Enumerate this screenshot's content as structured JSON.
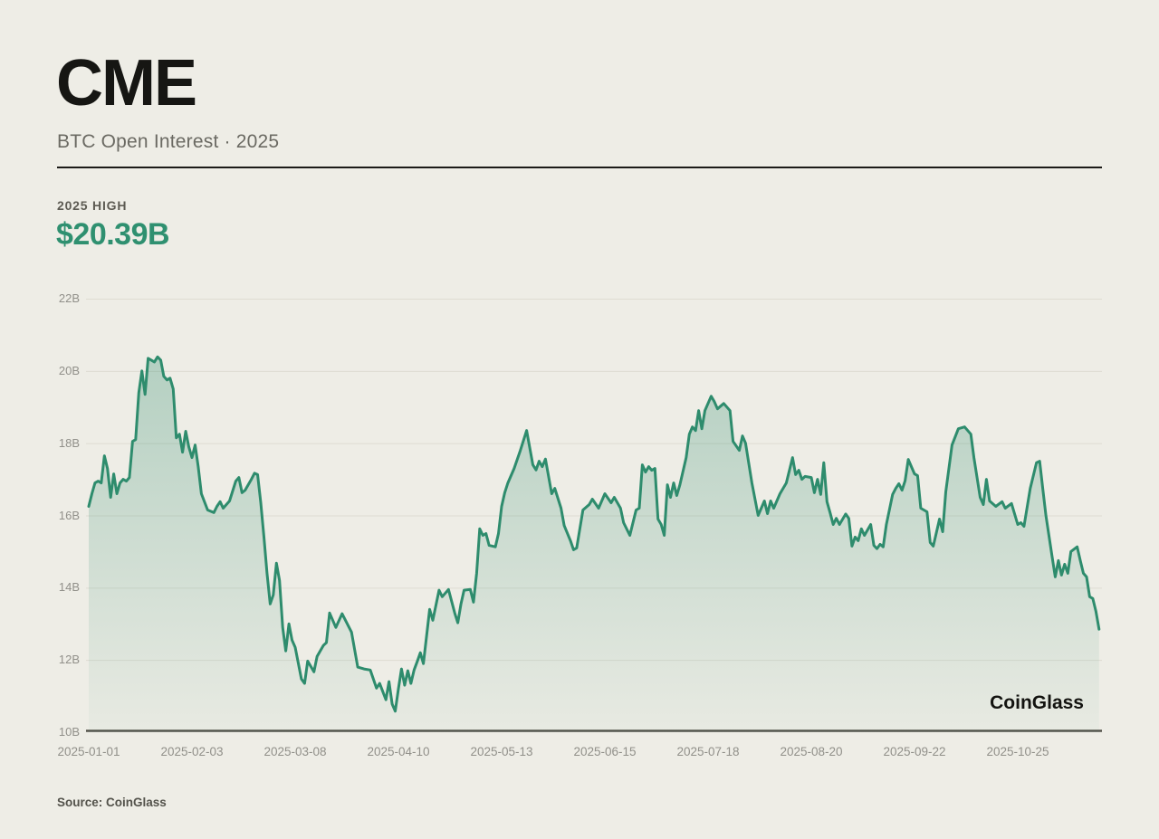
{
  "header": {
    "title": "CME",
    "subtitle": "BTC Open Interest · 2025"
  },
  "stat": {
    "label": "2025 HIGH",
    "value": "$20.39B"
  },
  "watermark": "CoinGlass",
  "source": "Source: CoinGlass",
  "colors": {
    "background": "#EEEDE6",
    "line": "#2E8C6D",
    "fill_top": "rgba(46,140,109,0.30)",
    "fill_bottom": "rgba(46,140,109,0.03)",
    "grid": "#DEDCD2",
    "axis": "#55544C",
    "tick_label": "#91908A",
    "accent_green": "#2F9070",
    "title": "#161613",
    "divider": "#1C1B18"
  },
  "chart_data": {
    "type": "area",
    "title": "CME BTC Open Interest 2025",
    "unit": "billion USD",
    "high_2025": 20.39,
    "low_2025": 10.58,
    "ylim": [
      10,
      22
    ],
    "grid": "horizontal-only",
    "legend": "none",
    "y_ticks": [
      {
        "label": "22B",
        "value": 22
      },
      {
        "label": "20B",
        "value": 20
      },
      {
        "label": "18B",
        "value": 18
      },
      {
        "label": "16B",
        "value": 16
      },
      {
        "label": "14B",
        "value": 14
      },
      {
        "label": "12B",
        "value": 12
      },
      {
        "label": "10B",
        "value": 10
      }
    ],
    "x_ticks": [
      "2025-01-01",
      "2025-02-03",
      "2025-03-08",
      "2025-04-10",
      "2025-05-13",
      "2025-06-15",
      "2025-07-18",
      "2025-08-20",
      "2025-09-22",
      "2025-10-25"
    ],
    "points": [
      [
        "2025-01-01",
        16.25
      ],
      [
        "2025-01-02",
        16.6
      ],
      [
        "2025-01-03",
        16.9
      ],
      [
        "2025-01-04",
        16.95
      ],
      [
        "2025-01-05",
        16.9
      ],
      [
        "2025-01-06",
        17.65
      ],
      [
        "2025-01-07",
        17.3
      ],
      [
        "2025-01-08",
        16.5
      ],
      [
        "2025-01-09",
        17.15
      ],
      [
        "2025-01-10",
        16.6
      ],
      [
        "2025-01-11",
        16.9
      ],
      [
        "2025-01-12",
        17.0
      ],
      [
        "2025-01-13",
        16.95
      ],
      [
        "2025-01-14",
        17.05
      ],
      [
        "2025-01-15",
        18.05
      ],
      [
        "2025-01-16",
        18.1
      ],
      [
        "2025-01-17",
        19.4
      ],
      [
        "2025-01-18",
        20.0
      ],
      [
        "2025-01-19",
        19.35
      ],
      [
        "2025-01-20",
        20.35
      ],
      [
        "2025-01-21",
        20.3
      ],
      [
        "2025-01-22",
        20.25
      ],
      [
        "2025-01-23",
        20.39
      ],
      [
        "2025-01-24",
        20.3
      ],
      [
        "2025-01-25",
        19.85
      ],
      [
        "2025-01-26",
        19.75
      ],
      [
        "2025-01-27",
        19.8
      ],
      [
        "2025-01-28",
        19.5
      ],
      [
        "2025-01-29",
        18.15
      ],
      [
        "2025-01-30",
        18.25
      ],
      [
        "2025-01-31",
        17.75
      ],
      [
        "2025-02-01",
        18.33
      ],
      [
        "2025-02-02",
        17.9
      ],
      [
        "2025-02-03",
        17.6
      ],
      [
        "2025-02-04",
        17.95
      ],
      [
        "2025-02-05",
        17.35
      ],
      [
        "2025-02-06",
        16.6
      ],
      [
        "2025-02-08",
        16.15
      ],
      [
        "2025-02-10",
        16.08
      ],
      [
        "2025-02-11",
        16.25
      ],
      [
        "2025-02-12",
        16.38
      ],
      [
        "2025-02-13",
        16.2
      ],
      [
        "2025-02-15",
        16.4
      ],
      [
        "2025-02-17",
        16.95
      ],
      [
        "2025-02-18",
        17.05
      ],
      [
        "2025-02-19",
        16.63
      ],
      [
        "2025-02-20",
        16.7
      ],
      [
        "2025-02-22",
        17.0
      ],
      [
        "2025-02-23",
        17.17
      ],
      [
        "2025-02-24",
        17.13
      ],
      [
        "2025-02-25",
        16.35
      ],
      [
        "2025-02-26",
        15.4
      ],
      [
        "2025-02-27",
        14.4
      ],
      [
        "2025-02-28",
        13.55
      ],
      [
        "2025-03-01",
        13.8
      ],
      [
        "2025-03-02",
        14.68
      ],
      [
        "2025-03-03",
        14.2
      ],
      [
        "2025-03-04",
        12.9
      ],
      [
        "2025-03-05",
        12.25
      ],
      [
        "2025-03-06",
        13.0
      ],
      [
        "2025-03-07",
        12.55
      ],
      [
        "2025-03-08",
        12.35
      ],
      [
        "2025-03-10",
        11.47
      ],
      [
        "2025-03-11",
        11.35
      ],
      [
        "2025-03-12",
        11.97
      ],
      [
        "2025-03-14",
        11.67
      ],
      [
        "2025-03-15",
        12.1
      ],
      [
        "2025-03-17",
        12.4
      ],
      [
        "2025-03-18",
        12.48
      ],
      [
        "2025-03-19",
        13.3
      ],
      [
        "2025-03-21",
        12.9
      ],
      [
        "2025-03-23",
        13.28
      ],
      [
        "2025-03-26",
        12.77
      ],
      [
        "2025-03-28",
        11.8
      ],
      [
        "2025-03-30",
        11.75
      ],
      [
        "2025-04-01",
        11.72
      ],
      [
        "2025-04-03",
        11.22
      ],
      [
        "2025-04-04",
        11.35
      ],
      [
        "2025-04-06",
        10.9
      ],
      [
        "2025-04-07",
        11.4
      ],
      [
        "2025-04-08",
        10.78
      ],
      [
        "2025-04-09",
        10.58
      ],
      [
        "2025-04-10",
        11.2
      ],
      [
        "2025-04-11",
        11.75
      ],
      [
        "2025-04-12",
        11.3
      ],
      [
        "2025-04-13",
        11.7
      ],
      [
        "2025-04-14",
        11.35
      ],
      [
        "2025-04-15",
        11.72
      ],
      [
        "2025-04-16",
        11.95
      ],
      [
        "2025-04-17",
        12.2
      ],
      [
        "2025-04-18",
        11.9
      ],
      [
        "2025-04-20",
        13.4
      ],
      [
        "2025-04-21",
        13.1
      ],
      [
        "2025-04-23",
        13.93
      ],
      [
        "2025-04-24",
        13.75
      ],
      [
        "2025-04-26",
        13.95
      ],
      [
        "2025-04-28",
        13.3
      ],
      [
        "2025-04-29",
        13.03
      ],
      [
        "2025-04-30",
        13.55
      ],
      [
        "2025-05-01",
        13.93
      ],
      [
        "2025-05-03",
        13.95
      ],
      [
        "2025-05-04",
        13.6
      ],
      [
        "2025-05-05",
        14.4
      ],
      [
        "2025-05-06",
        15.63
      ],
      [
        "2025-05-07",
        15.45
      ],
      [
        "2025-05-08",
        15.5
      ],
      [
        "2025-05-09",
        15.17
      ],
      [
        "2025-05-11",
        15.13
      ],
      [
        "2025-05-12",
        15.5
      ],
      [
        "2025-05-13",
        16.25
      ],
      [
        "2025-05-14",
        16.63
      ],
      [
        "2025-05-15",
        16.9
      ],
      [
        "2025-05-17",
        17.3
      ],
      [
        "2025-05-19",
        17.8
      ],
      [
        "2025-05-21",
        18.35
      ],
      [
        "2025-05-23",
        17.4
      ],
      [
        "2025-05-24",
        17.26
      ],
      [
        "2025-05-25",
        17.5
      ],
      [
        "2025-05-26",
        17.35
      ],
      [
        "2025-05-27",
        17.56
      ],
      [
        "2025-05-29",
        16.6
      ],
      [
        "2025-05-30",
        16.75
      ],
      [
        "2025-06-01",
        16.2
      ],
      [
        "2025-06-02",
        15.72
      ],
      [
        "2025-06-04",
        15.3
      ],
      [
        "2025-06-05",
        15.05
      ],
      [
        "2025-06-06",
        15.1
      ],
      [
        "2025-06-08",
        16.15
      ],
      [
        "2025-06-10",
        16.3
      ],
      [
        "2025-06-11",
        16.45
      ],
      [
        "2025-06-13",
        16.2
      ],
      [
        "2025-06-15",
        16.6
      ],
      [
        "2025-06-17",
        16.35
      ],
      [
        "2025-06-18",
        16.5
      ],
      [
        "2025-06-20",
        16.2
      ],
      [
        "2025-06-21",
        15.8
      ],
      [
        "2025-06-23",
        15.45
      ],
      [
        "2025-06-25",
        16.15
      ],
      [
        "2025-06-26",
        16.2
      ],
      [
        "2025-06-27",
        17.4
      ],
      [
        "2025-06-28",
        17.2
      ],
      [
        "2025-06-29",
        17.35
      ],
      [
        "2025-06-30",
        17.25
      ],
      [
        "2025-07-01",
        17.3
      ],
      [
        "2025-07-02",
        15.9
      ],
      [
        "2025-07-03",
        15.75
      ],
      [
        "2025-07-04",
        15.45
      ],
      [
        "2025-07-05",
        16.85
      ],
      [
        "2025-07-06",
        16.5
      ],
      [
        "2025-07-07",
        16.9
      ],
      [
        "2025-07-08",
        16.55
      ],
      [
        "2025-07-09",
        16.85
      ],
      [
        "2025-07-11",
        17.6
      ],
      [
        "2025-07-12",
        18.25
      ],
      [
        "2025-07-13",
        18.45
      ],
      [
        "2025-07-14",
        18.35
      ],
      [
        "2025-07-15",
        18.9
      ],
      [
        "2025-07-16",
        18.4
      ],
      [
        "2025-07-17",
        18.9
      ],
      [
        "2025-07-19",
        19.3
      ],
      [
        "2025-07-20",
        19.15
      ],
      [
        "2025-07-21",
        18.95
      ],
      [
        "2025-07-23",
        19.1
      ],
      [
        "2025-07-25",
        18.9
      ],
      [
        "2025-07-26",
        18.05
      ],
      [
        "2025-07-28",
        17.8
      ],
      [
        "2025-07-29",
        18.2
      ],
      [
        "2025-07-30",
        18.0
      ],
      [
        "2025-08-01",
        16.9
      ],
      [
        "2025-08-03",
        16.0
      ],
      [
        "2025-08-05",
        16.4
      ],
      [
        "2025-08-06",
        16.05
      ],
      [
        "2025-08-07",
        16.4
      ],
      [
        "2025-08-08",
        16.2
      ],
      [
        "2025-08-10",
        16.6
      ],
      [
        "2025-08-12",
        16.9
      ],
      [
        "2025-08-14",
        17.6
      ],
      [
        "2025-08-15",
        17.13
      ],
      [
        "2025-08-16",
        17.25
      ],
      [
        "2025-08-17",
        17.0
      ],
      [
        "2025-08-18",
        17.08
      ],
      [
        "2025-08-20",
        17.05
      ],
      [
        "2025-08-21",
        16.63
      ],
      [
        "2025-08-22",
        17.0
      ],
      [
        "2025-08-23",
        16.58
      ],
      [
        "2025-08-24",
        17.46
      ],
      [
        "2025-08-25",
        16.38
      ],
      [
        "2025-08-26",
        16.08
      ],
      [
        "2025-08-27",
        15.75
      ],
      [
        "2025-08-28",
        15.92
      ],
      [
        "2025-08-29",
        15.75
      ],
      [
        "2025-08-31",
        16.04
      ],
      [
        "2025-09-01",
        15.92
      ],
      [
        "2025-09-02",
        15.15
      ],
      [
        "2025-09-03",
        15.4
      ],
      [
        "2025-09-04",
        15.3
      ],
      [
        "2025-09-05",
        15.63
      ],
      [
        "2025-09-06",
        15.45
      ],
      [
        "2025-09-08",
        15.75
      ],
      [
        "2025-09-09",
        15.17
      ],
      [
        "2025-09-10",
        15.08
      ],
      [
        "2025-09-11",
        15.2
      ],
      [
        "2025-09-12",
        15.13
      ],
      [
        "2025-09-13",
        15.75
      ],
      [
        "2025-09-15",
        16.58
      ],
      [
        "2025-09-16",
        16.75
      ],
      [
        "2025-09-17",
        16.88
      ],
      [
        "2025-09-18",
        16.7
      ],
      [
        "2025-09-19",
        16.96
      ],
      [
        "2025-09-20",
        17.55
      ],
      [
        "2025-09-22",
        17.15
      ],
      [
        "2025-09-23",
        17.1
      ],
      [
        "2025-09-24",
        16.2
      ],
      [
        "2025-09-26",
        16.1
      ],
      [
        "2025-09-27",
        15.25
      ],
      [
        "2025-09-28",
        15.15
      ],
      [
        "2025-09-30",
        15.9
      ],
      [
        "2025-10-01",
        15.55
      ],
      [
        "2025-10-02",
        16.65
      ],
      [
        "2025-10-04",
        17.95
      ],
      [
        "2025-10-06",
        18.4
      ],
      [
        "2025-10-08",
        18.45
      ],
      [
        "2025-10-10",
        18.25
      ],
      [
        "2025-10-11",
        17.6
      ],
      [
        "2025-10-13",
        16.5
      ],
      [
        "2025-10-14",
        16.3
      ],
      [
        "2025-10-15",
        17.0
      ],
      [
        "2025-10-16",
        16.4
      ],
      [
        "2025-10-18",
        16.25
      ],
      [
        "2025-10-20",
        16.38
      ],
      [
        "2025-10-21",
        16.2
      ],
      [
        "2025-10-23",
        16.33
      ],
      [
        "2025-10-25",
        15.75
      ],
      [
        "2025-10-26",
        15.8
      ],
      [
        "2025-10-27",
        15.7
      ],
      [
        "2025-10-29",
        16.75
      ],
      [
        "2025-10-31",
        17.46
      ],
      [
        "2025-11-01",
        17.5
      ],
      [
        "2025-11-02",
        16.75
      ],
      [
        "2025-11-03",
        16.0
      ],
      [
        "2025-11-05",
        14.85
      ],
      [
        "2025-11-06",
        14.3
      ],
      [
        "2025-11-07",
        14.75
      ],
      [
        "2025-11-08",
        14.35
      ],
      [
        "2025-11-09",
        14.65
      ],
      [
        "2025-11-10",
        14.4
      ],
      [
        "2025-11-11",
        15.0
      ],
      [
        "2025-11-13",
        15.13
      ],
      [
        "2025-11-14",
        14.75
      ],
      [
        "2025-11-15",
        14.4
      ],
      [
        "2025-11-16",
        14.3
      ],
      [
        "2025-11-17",
        13.75
      ],
      [
        "2025-11-18",
        13.7
      ],
      [
        "2025-11-19",
        13.35
      ],
      [
        "2025-11-20",
        12.85
      ]
    ]
  }
}
